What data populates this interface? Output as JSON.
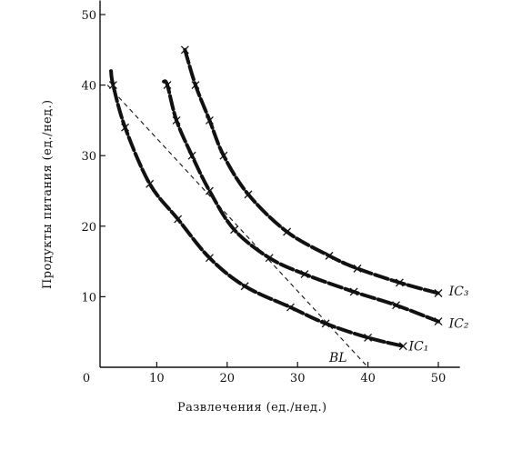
{
  "chart_data": {
    "type": "line",
    "title": "",
    "xlabel": "Развлечения (ед./нед.)",
    "ylabel": "Продукты питания (ед./нед.)",
    "xlim": [
      0,
      55
    ],
    "ylim": [
      0,
      52
    ],
    "x_ticks": [
      0,
      10,
      20,
      30,
      40,
      50
    ],
    "y_ticks": [
      10,
      20,
      30,
      40,
      50
    ],
    "x_tick_labels": [
      "0",
      "10",
      "20",
      "30",
      "40",
      "50"
    ],
    "y_tick_labels": [
      "10",
      "20",
      "30",
      "40",
      "50"
    ],
    "grid": false,
    "legend": "none",
    "series": [
      {
        "name": "IC₁",
        "style": "thick-dashed",
        "points": [
          [
            3.5,
            42
          ],
          [
            3.8,
            40
          ],
          [
            5.5,
            34
          ],
          [
            9,
            26
          ],
          [
            13,
            21
          ],
          [
            17.5,
            15.5
          ],
          [
            22.5,
            11.5
          ],
          [
            29,
            8.5
          ],
          [
            34,
            6.2
          ],
          [
            40,
            4.2
          ],
          [
            45,
            3
          ]
        ],
        "markers": [
          [
            3.8,
            40
          ],
          [
            5.5,
            34
          ],
          [
            9,
            26
          ],
          [
            13,
            21
          ],
          [
            17.5,
            15.5
          ],
          [
            22.5,
            11.5
          ],
          [
            29,
            8.5
          ],
          [
            34,
            6.2
          ],
          [
            40,
            4.2
          ],
          [
            45,
            3
          ]
        ],
        "label_at": [
          45.8,
          2.4
        ]
      },
      {
        "name": "IC₂",
        "style": "thick-dashed",
        "points": [
          [
            11,
            40.5
          ],
          [
            11.5,
            40
          ],
          [
            12.8,
            35
          ],
          [
            15,
            30
          ],
          [
            17.5,
            25
          ],
          [
            21,
            19.5
          ],
          [
            26,
            15.5
          ],
          [
            31,
            13.2
          ],
          [
            38,
            10.7
          ],
          [
            44,
            8.8
          ],
          [
            50,
            6.5
          ]
        ],
        "markers": [
          [
            11.5,
            40
          ],
          [
            12.8,
            35
          ],
          [
            15,
            30
          ],
          [
            17.5,
            25
          ],
          [
            21,
            19.5
          ],
          [
            26,
            15.5
          ],
          [
            31,
            13.2
          ],
          [
            38,
            10.7
          ],
          [
            44,
            8.8
          ],
          [
            50,
            6.5
          ]
        ],
        "label_at": [
          51.5,
          5.6
        ]
      },
      {
        "name": "IC₃",
        "style": "thick-dashed",
        "points": [
          [
            14,
            45
          ],
          [
            15.5,
            40
          ],
          [
            17.5,
            35
          ],
          [
            19.5,
            30
          ],
          [
            23,
            24.5
          ],
          [
            28.5,
            19.2
          ],
          [
            34.5,
            15.8
          ],
          [
            38.5,
            14
          ],
          [
            44.5,
            12
          ],
          [
            50,
            10.5
          ]
        ],
        "markers": [
          [
            14,
            45
          ],
          [
            15.5,
            40
          ],
          [
            17.5,
            35
          ],
          [
            19.5,
            30
          ],
          [
            23,
            24.5
          ],
          [
            28.5,
            19.2
          ],
          [
            34.5,
            15.8
          ],
          [
            38.5,
            14
          ],
          [
            44.5,
            12
          ],
          [
            50,
            10.5
          ]
        ],
        "label_at": [
          51.5,
          10.2
        ]
      },
      {
        "name": "BL",
        "style": "thin-dashed",
        "points": [
          [
            3,
            40
          ],
          [
            40,
            0
          ]
        ],
        "markers": [],
        "label_at": [
          34.5,
          0.8
        ]
      }
    ]
  }
}
